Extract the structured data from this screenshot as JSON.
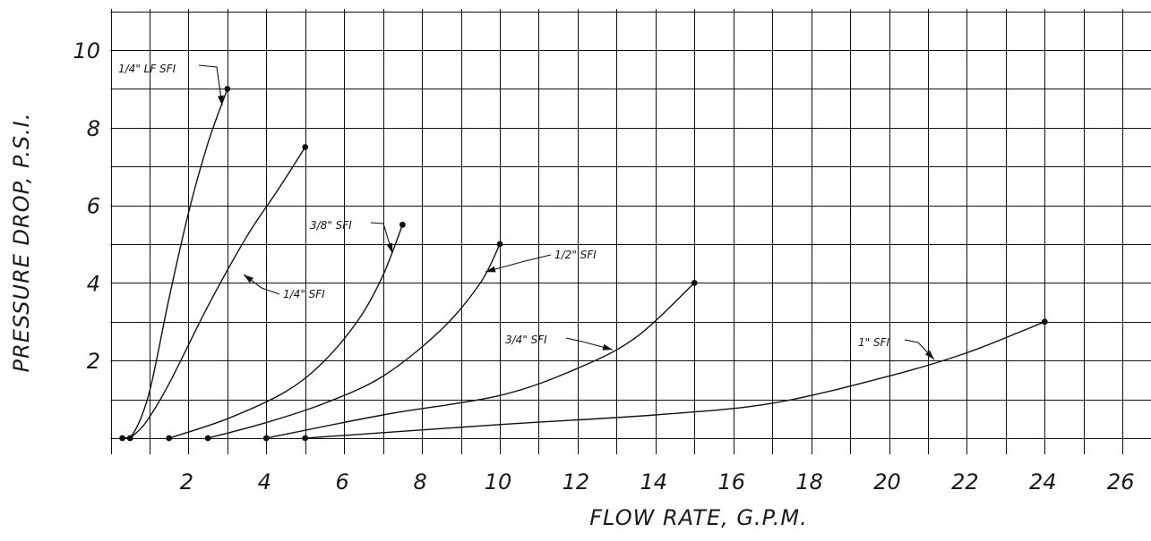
{
  "chart_data": {
    "type": "line",
    "title": "",
    "xlabel": "FLOW RATE, G.P.M.",
    "ylabel": "PRESSURE DROP, P.S.I.",
    "xlim": [
      0,
      26
    ],
    "ylim": [
      0,
      10
    ],
    "x_ticks": [
      2,
      4,
      6,
      8,
      10,
      12,
      14,
      16,
      18,
      20,
      22,
      24,
      26
    ],
    "y_ticks": [
      2,
      4,
      6,
      8,
      10
    ],
    "grid": true,
    "series": [
      {
        "name": "1/4\" LF SFI",
        "points": [
          [
            0.3,
            0.0
          ],
          [
            0.6,
            0.15
          ],
          [
            1.0,
            1.2
          ],
          [
            1.5,
            3.6
          ],
          [
            2.0,
            5.8
          ],
          [
            2.5,
            7.6
          ],
          [
            3.0,
            9.0
          ]
        ]
      },
      {
        "name": "1/4\" SFI",
        "points": [
          [
            0.5,
            0.0
          ],
          [
            0.9,
            0.4
          ],
          [
            1.5,
            1.4
          ],
          [
            2.5,
            3.4
          ],
          [
            3.5,
            5.2
          ],
          [
            4.3,
            6.4
          ],
          [
            5.0,
            7.5
          ]
        ]
      },
      {
        "name": "3/8\" SFI",
        "points": [
          [
            1.5,
            0.0
          ],
          [
            3.0,
            0.5
          ],
          [
            4.5,
            1.2
          ],
          [
            5.5,
            2.0
          ],
          [
            6.4,
            3.1
          ],
          [
            7.0,
            4.2
          ],
          [
            7.5,
            5.5
          ]
        ]
      },
      {
        "name": "1/2\" SFI",
        "points": [
          [
            2.5,
            0.0
          ],
          [
            4.0,
            0.4
          ],
          [
            5.5,
            0.9
          ],
          [
            7.0,
            1.6
          ],
          [
            8.5,
            2.8
          ],
          [
            9.5,
            4.0
          ],
          [
            10.0,
            5.0
          ]
        ]
      },
      {
        "name": "3/4\" SFI",
        "points": [
          [
            4.0,
            0.0
          ],
          [
            7.0,
            0.6
          ],
          [
            10.0,
            1.1
          ],
          [
            12.0,
            1.8
          ],
          [
            13.5,
            2.6
          ],
          [
            15.0,
            4.0
          ]
        ]
      },
      {
        "name": "1\" SFI",
        "points": [
          [
            5.0,
            0.0
          ],
          [
            10.0,
            0.35
          ],
          [
            14.0,
            0.6
          ],
          [
            17.0,
            0.9
          ],
          [
            20.0,
            1.6
          ],
          [
            22.0,
            2.2
          ],
          [
            24.0,
            3.0
          ]
        ]
      }
    ]
  }
}
